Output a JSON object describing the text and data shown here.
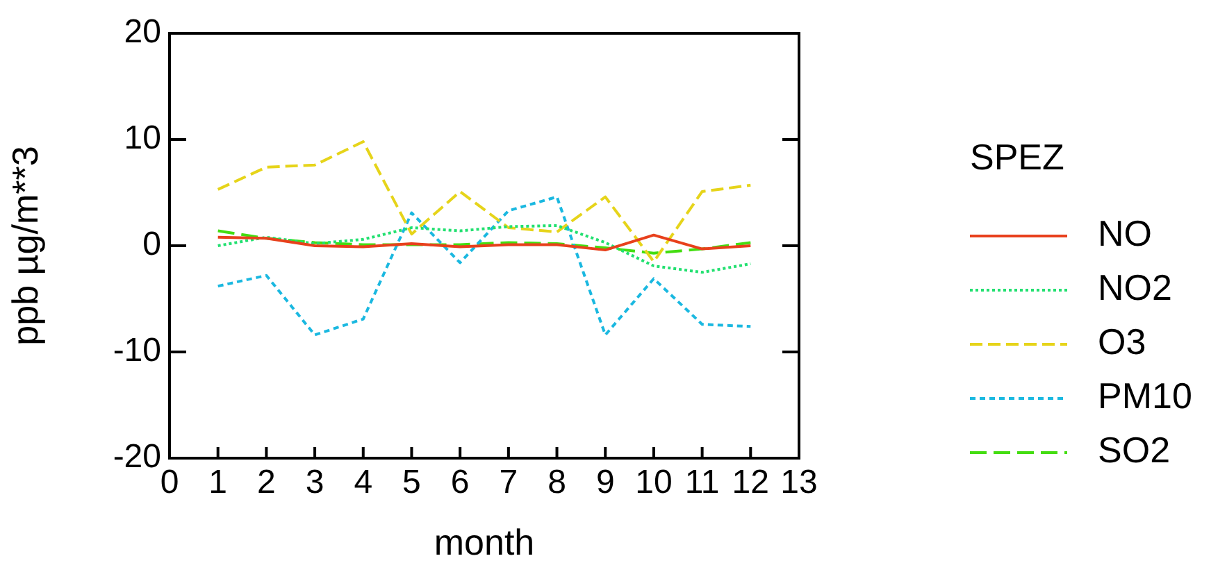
{
  "chart_data": {
    "type": "line",
    "xlabel": "month",
    "ylabel": "ppb µg/m**3",
    "legend_title": "SPEZ",
    "legend": "right",
    "grid": false,
    "marker": "none",
    "x": [
      1,
      2,
      3,
      4,
      5,
      6,
      7,
      8,
      9,
      10,
      11,
      12
    ],
    "xlim": [
      0,
      13
    ],
    "xticks": [
      0,
      1,
      2,
      3,
      4,
      5,
      6,
      7,
      8,
      9,
      10,
      11,
      12,
      13
    ],
    "ylim": [
      -20,
      20
    ],
    "yticks": [
      -20,
      -10,
      0,
      10,
      20
    ],
    "series": [
      {
        "name": "NO",
        "color": "#e8401c",
        "line_style": "solid",
        "values": [
          0.8,
          0.7,
          0,
          -0.1,
          0.2,
          -0.1,
          0.1,
          0.1,
          -0.4,
          1.0,
          -0.3,
          0
        ]
      },
      {
        "name": "NO2",
        "color": "#22e070",
        "line_style": "dotted",
        "values": [
          0,
          0.8,
          0.2,
          0.6,
          1.7,
          1.4,
          1.8,
          1.9,
          0.3,
          -1.9,
          -2.5,
          -1.7
        ]
      },
      {
        "name": "O3",
        "color": "#e6d41a",
        "line_style": "dashed",
        "values": [
          5.3,
          7.4,
          7.6,
          9.8,
          1.1,
          5.1,
          1.7,
          1.3,
          4.6,
          -1.5,
          5.1,
          5.7
        ]
      },
      {
        "name": "PM10",
        "color": "#1ab8e0",
        "line_style": "dashed",
        "values": [
          -3.8,
          -2.8,
          -8.4,
          -6.9,
          3.1,
          -1.6,
          3.3,
          4.6,
          -8.4,
          -3.1,
          -7.4,
          -7.6
        ]
      },
      {
        "name": "SO2",
        "color": "#44dd11",
        "line_style": "dashed",
        "values": [
          1.4,
          0.7,
          0.3,
          0.1,
          0.1,
          0.1,
          0.3,
          0.2,
          -0.2,
          -0.7,
          -0.3,
          0.3
        ]
      }
    ]
  }
}
